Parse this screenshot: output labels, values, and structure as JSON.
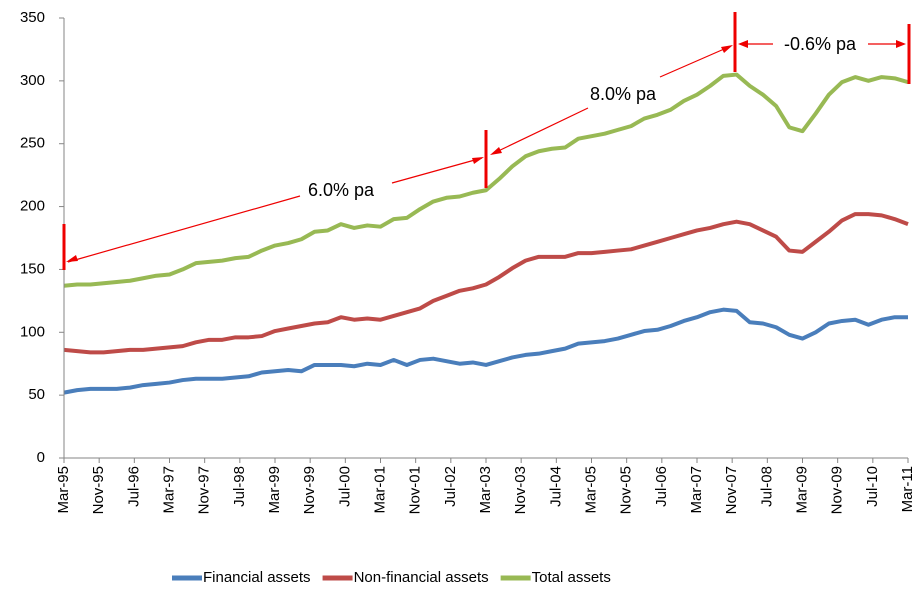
{
  "chart_data": {
    "type": "line",
    "x": [
      "Mar-95",
      "Jun-95",
      "Sep-95",
      "Dec-95",
      "Mar-96",
      "Jun-96",
      "Sep-96",
      "Dec-96",
      "Mar-97",
      "Jun-97",
      "Sep-97",
      "Dec-97",
      "Mar-98",
      "Jun-98",
      "Sep-98",
      "Dec-98",
      "Mar-99",
      "Jun-99",
      "Sep-99",
      "Dec-99",
      "Mar-00",
      "Jun-00",
      "Sep-00",
      "Dec-00",
      "Mar-01",
      "Jun-01",
      "Sep-01",
      "Dec-01",
      "Mar-02",
      "Jun-02",
      "Sep-02",
      "Dec-02",
      "Mar-03",
      "Jun-03",
      "Sep-03",
      "Dec-03",
      "Mar-04",
      "Jun-04",
      "Sep-04",
      "Dec-04",
      "Mar-05",
      "Jun-05",
      "Sep-05",
      "Dec-05",
      "Mar-06",
      "Jun-06",
      "Sep-06",
      "Dec-06",
      "Mar-07",
      "Jun-07",
      "Sep-07",
      "Dec-07",
      "Mar-08",
      "Jun-08",
      "Sep-08",
      "Dec-08",
      "Mar-09",
      "Jun-09",
      "Sep-09",
      "Dec-09",
      "Mar-10",
      "Jun-10",
      "Sep-10",
      "Dec-10",
      "Mar-11"
    ],
    "xticks": [
      "Mar-95",
      "Nov-95",
      "Jul-96",
      "Mar-97",
      "Nov-97",
      "Jul-98",
      "Mar-99",
      "Nov-99",
      "Jul-00",
      "Mar-01",
      "Nov-01",
      "Jul-02",
      "Mar-03",
      "Nov-03",
      "Jul-04",
      "Mar-05",
      "Nov-05",
      "Jul-06",
      "Mar-07",
      "Nov-07",
      "Jul-08",
      "Mar-09",
      "Nov-09",
      "Jul-10",
      "Mar-11"
    ],
    "ylim": [
      0,
      350
    ],
    "yticks": [
      0,
      50,
      100,
      150,
      200,
      250,
      300,
      350
    ],
    "grid": false,
    "legend": "bottom",
    "series": [
      {
        "name": "Financial assets",
        "color": "#4a7ebb",
        "values": [
          52,
          54,
          55,
          55,
          55,
          56,
          58,
          59,
          60,
          62,
          63,
          63,
          63,
          64,
          65,
          68,
          69,
          70,
          69,
          74,
          74,
          74,
          73,
          75,
          74,
          78,
          74,
          78,
          79,
          77,
          75,
          76,
          74,
          77,
          80,
          82,
          83,
          85,
          87,
          91,
          92,
          93,
          95,
          98,
          101,
          102,
          105,
          109,
          112,
          116,
          118,
          117,
          108,
          107,
          104,
          98,
          95,
          100,
          107,
          109,
          110,
          106,
          110,
          112,
          112
        ]
      },
      {
        "name": "Non-financial assets",
        "color": "#be4b48",
        "values": [
          86,
          85,
          84,
          84,
          85,
          86,
          86,
          87,
          88,
          89,
          92,
          94,
          94,
          96,
          96,
          97,
          101,
          103,
          105,
          107,
          108,
          112,
          110,
          111,
          110,
          113,
          116,
          119,
          125,
          129,
          133,
          135,
          138,
          144,
          151,
          157,
          160,
          160,
          160,
          163,
          163,
          164,
          165,
          166,
          169,
          172,
          175,
          178,
          181,
          183,
          186,
          188,
          186,
          181,
          176,
          165,
          164,
          172,
          180,
          189,
          194,
          194,
          193,
          190,
          186
        ]
      },
      {
        "name": "Total assets",
        "color": "#98b954",
        "values": [
          137,
          138,
          138,
          139,
          140,
          141,
          143,
          145,
          146,
          150,
          155,
          156,
          157,
          159,
          160,
          165,
          169,
          171,
          174,
          180,
          181,
          186,
          183,
          185,
          184,
          190,
          191,
          198,
          204,
          207,
          208,
          211,
          213,
          222,
          232,
          240,
          244,
          246,
          247,
          254,
          256,
          258,
          261,
          264,
          270,
          273,
          277,
          284,
          289,
          296,
          304,
          305,
          296,
          289,
          280,
          263,
          260,
          274,
          289,
          299,
          303,
          300,
          303,
          302,
          299
        ]
      }
    ],
    "annotations": [
      "6.0% pa",
      "8.0% pa",
      "-0.6% pa"
    ]
  }
}
